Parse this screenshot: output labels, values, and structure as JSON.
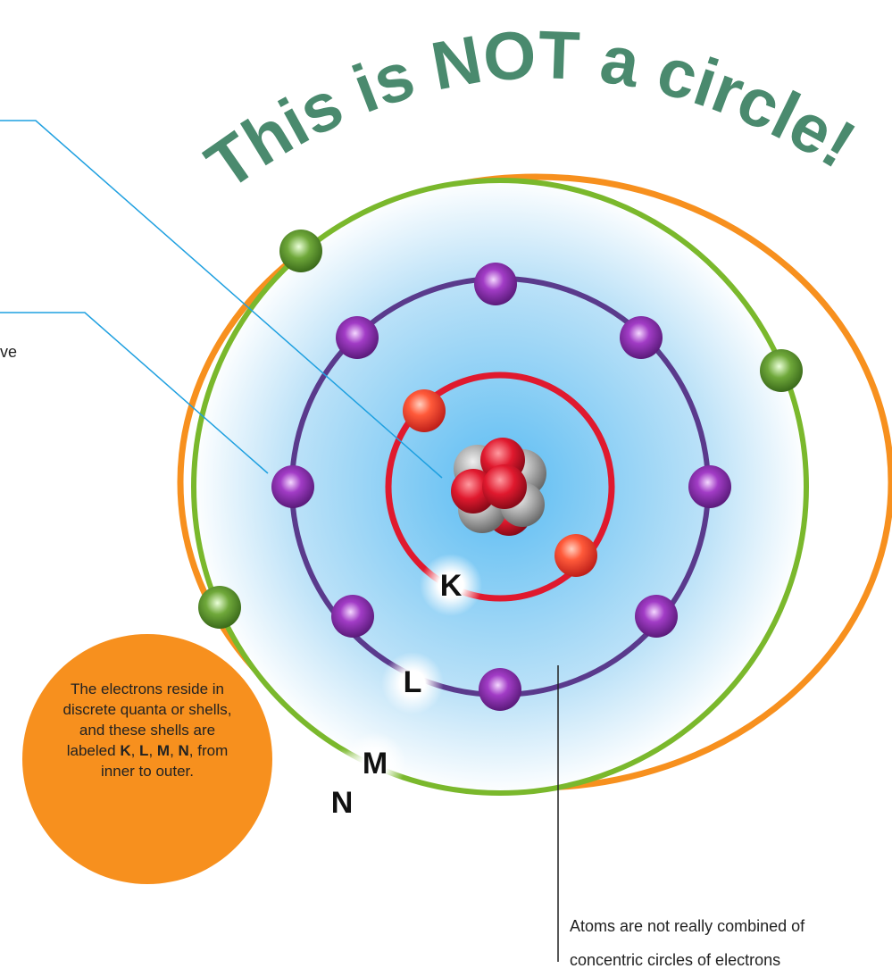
{
  "title": "This is NOT a circle!",
  "left_fragment": "ve",
  "shell_labels": [
    "K",
    "L",
    "M",
    "N"
  ],
  "bubble": [
    {
      "text": "The electrons reside in discrete quanta or shells, and these shells are labeled ",
      "bold": false
    },
    {
      "text": "K",
      "bold": true
    },
    {
      "text": ", ",
      "bold": false
    },
    {
      "text": "L",
      "bold": true
    },
    {
      "text": ", ",
      "bold": false
    },
    {
      "text": "M",
      "bold": true
    },
    {
      "text": ", ",
      "bold": false
    },
    {
      "text": "N",
      "bold": true
    },
    {
      "text": ", from inner to outer.",
      "bold": false
    }
  ],
  "note_lines": [
    "Atoms are not really combined of",
    "concentric circles of electrons"
  ]
}
